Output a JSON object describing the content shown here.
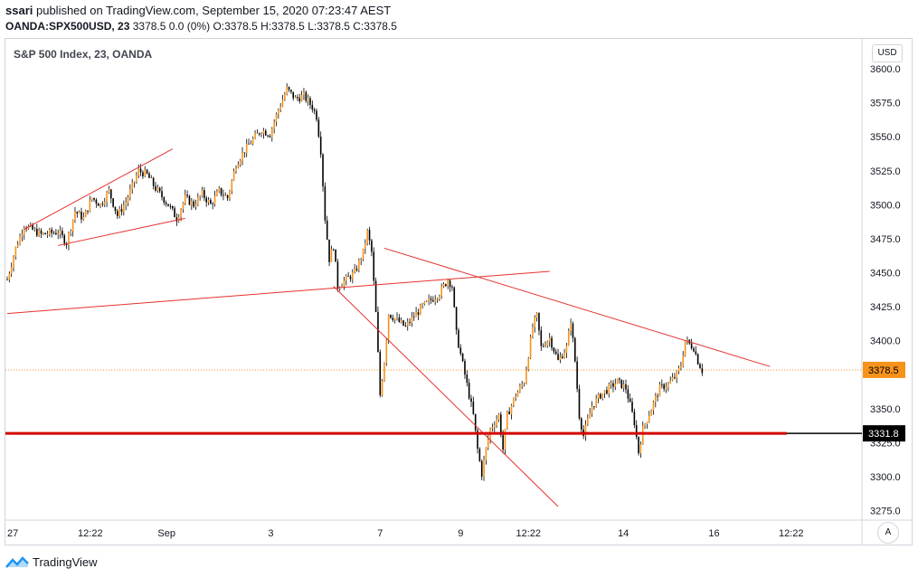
{
  "header": {
    "author": "ssari",
    "published": " published on TradingView.com, September 15, 2020 07:23:47 AEST",
    "symbol": "OANDA:SPX500USD, 23",
    "quote": " 3378.5 0.0 (0%) O:3378.5 H:3378.5 L:3378.5 C:3378.5"
  },
  "legend": "S&P 500 Index, 23, OANDA",
  "currency_label": "USD",
  "auto_button": "A",
  "brand": "TradingView",
  "colors": {
    "candle_up": "#f7931a",
    "candle_down": "#000000",
    "trendline": "#e5312f",
    "support_line": "#d50000",
    "price_label_bg": "#f7931a",
    "support_label_bg": "#000000"
  },
  "chart_data": {
    "type": "candlestick",
    "y_axis_ticks": [
      "3600.0",
      "3575.0",
      "3550.0",
      "3525.0",
      "3500.0",
      "3475.0",
      "3450.0",
      "3425.0",
      "3400.0",
      "3378.5",
      "3350.0",
      "3331.8",
      "3325.0",
      "3300.0",
      "3275.0"
    ],
    "y_range": [
      3268,
      3622
    ],
    "x_axis_ticks": [
      "27",
      "12:22",
      "Sep",
      "3",
      "7",
      "9",
      "12:22",
      "14",
      "16",
      "12:22"
    ],
    "x_tick_pos": [
      0.0,
      0.098,
      0.188,
      0.311,
      0.44,
      0.535,
      0.615,
      0.727,
      0.834,
      0.925
    ],
    "last_price": {
      "label": "3378.5",
      "value": 3378.5
    },
    "support": {
      "label": "3331.8",
      "value": 3331.8
    },
    "price_path": [
      [
        0.0,
        3445
      ],
      [
        0.01,
        3468
      ],
      [
        0.02,
        3485
      ],
      [
        0.04,
        3478
      ],
      [
        0.06,
        3480
      ],
      [
        0.07,
        3472
      ],
      [
        0.08,
        3495
      ],
      [
        0.09,
        3490
      ],
      [
        0.1,
        3505
      ],
      [
        0.11,
        3500
      ],
      [
        0.12,
        3510
      ],
      [
        0.13,
        3492
      ],
      [
        0.14,
        3502
      ],
      [
        0.155,
        3525
      ],
      [
        0.165,
        3522
      ],
      [
        0.175,
        3512
      ],
      [
        0.19,
        3500
      ],
      [
        0.2,
        3490
      ],
      [
        0.21,
        3505
      ],
      [
        0.22,
        3500
      ],
      [
        0.23,
        3508
      ],
      [
        0.24,
        3500
      ],
      [
        0.25,
        3510
      ],
      [
        0.26,
        3505
      ],
      [
        0.27,
        3530
      ],
      [
        0.28,
        3540
      ],
      [
        0.29,
        3548
      ],
      [
        0.3,
        3555
      ],
      [
        0.31,
        3552
      ],
      [
        0.32,
        3570
      ],
      [
        0.33,
        3585
      ],
      [
        0.34,
        3578
      ],
      [
        0.35,
        3580
      ],
      [
        0.36,
        3572
      ],
      [
        0.365,
        3565
      ],
      [
        0.37,
        3540
      ],
      [
        0.375,
        3490
      ],
      [
        0.38,
        3460
      ],
      [
        0.385,
        3470
      ],
      [
        0.39,
        3440
      ],
      [
        0.4,
        3445
      ],
      [
        0.41,
        3450
      ],
      [
        0.42,
        3465
      ],
      [
        0.425,
        3480
      ],
      [
        0.43,
        3465
      ],
      [
        0.435,
        3420
      ],
      [
        0.44,
        3360
      ],
      [
        0.445,
        3385
      ],
      [
        0.45,
        3420
      ],
      [
        0.46,
        3415
      ],
      [
        0.47,
        3410
      ],
      [
        0.48,
        3418
      ],
      [
        0.49,
        3425
      ],
      [
        0.5,
        3430
      ],
      [
        0.51,
        3435
      ],
      [
        0.52,
        3445
      ],
      [
        0.525,
        3440
      ],
      [
        0.53,
        3405
      ],
      [
        0.54,
        3375
      ],
      [
        0.55,
        3345
      ],
      [
        0.555,
        3320
      ],
      [
        0.56,
        3302
      ],
      [
        0.565,
        3320
      ],
      [
        0.57,
        3335
      ],
      [
        0.58,
        3345
      ],
      [
        0.585,
        3320
      ],
      [
        0.59,
        3345
      ],
      [
        0.6,
        3360
      ],
      [
        0.61,
        3370
      ],
      [
        0.62,
        3410
      ],
      [
        0.625,
        3418
      ],
      [
        0.63,
        3395
      ],
      [
        0.64,
        3402
      ],
      [
        0.65,
        3385
      ],
      [
        0.66,
        3395
      ],
      [
        0.665,
        3415
      ],
      [
        0.67,
        3385
      ],
      [
        0.675,
        3345
      ],
      [
        0.68,
        3330
      ],
      [
        0.69,
        3352
      ],
      [
        0.7,
        3360
      ],
      [
        0.71,
        3365
      ],
      [
        0.72,
        3370
      ],
      [
        0.73,
        3365
      ],
      [
        0.74,
        3340
      ],
      [
        0.745,
        3318
      ],
      [
        0.75,
        3335
      ],
      [
        0.76,
        3350
      ],
      [
        0.77,
        3365
      ],
      [
        0.78,
        3368
      ],
      [
        0.79,
        3375
      ],
      [
        0.795,
        3382
      ],
      [
        0.8,
        3400
      ],
      [
        0.81,
        3395
      ],
      [
        0.815,
        3385
      ],
      [
        0.82,
        3378
      ]
    ],
    "trendlines": [
      [
        [
          0.06,
          3470
        ],
        [
          0.21,
          3490
        ]
      ],
      [
        [
          0.02,
          3482
        ],
        [
          0.195,
          3541
        ]
      ],
      [
        [
          0.0,
          3420
        ],
        [
          0.64,
          3451
        ]
      ],
      [
        [
          0.445,
          3468
        ],
        [
          0.9,
          3381
        ]
      ],
      [
        [
          0.385,
          3440
        ],
        [
          0.65,
          3278
        ]
      ]
    ]
  }
}
